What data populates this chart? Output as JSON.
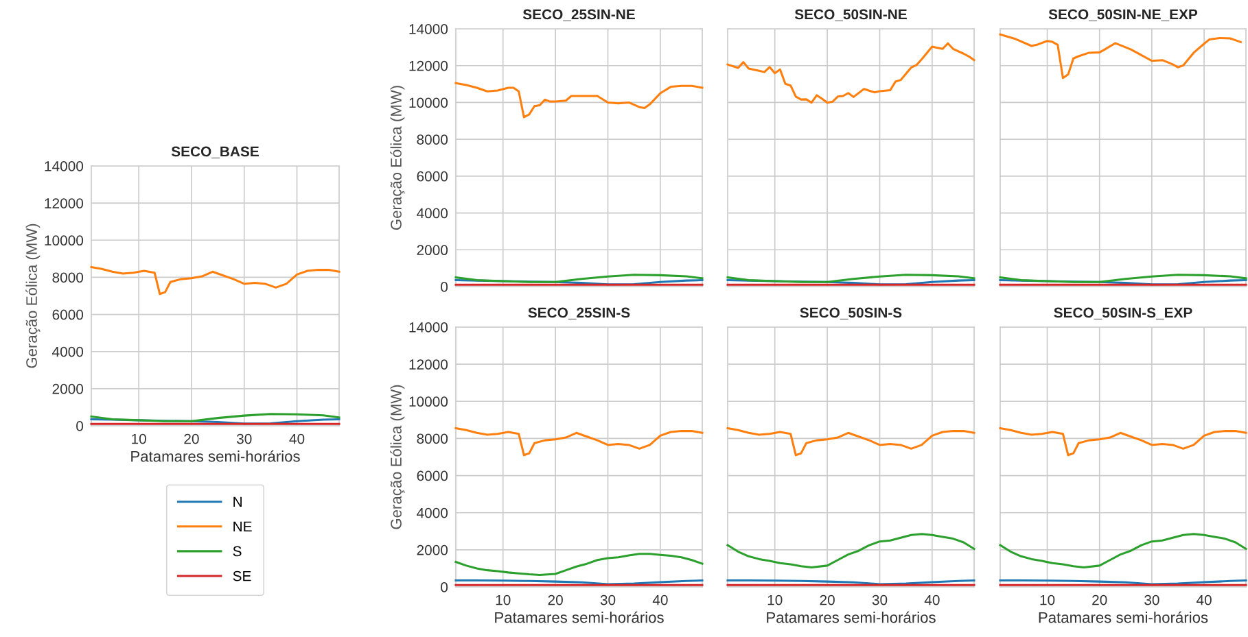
{
  "chart_data": [
    {
      "type": "line",
      "title": "SECO_BASE",
      "xlabel": "Patamares semi-horários",
      "ylabel": "Geração Eólica (MW)",
      "xlim": [
        1,
        48
      ],
      "xticks": [
        10,
        20,
        30,
        40
      ],
      "ylim": [
        0,
        14000
      ],
      "yticks": [
        0,
        2000,
        4000,
        6000,
        8000,
        10000,
        12000,
        14000
      ],
      "grid": true,
      "legend": "bottom",
      "line_style": "solid",
      "series": [
        {
          "name": "N",
          "color": "#1f77b4",
          "x": [
            1,
            5,
            10,
            15,
            20,
            25,
            30,
            35,
            40,
            45,
            48
          ],
          "values": [
            350,
            330,
            300,
            270,
            250,
            200,
            120,
            130,
            250,
            330,
            350
          ]
        },
        {
          "name": "NE",
          "color": "#ff7f0e",
          "x": [
            1,
            3,
            5,
            7,
            9,
            11,
            13,
            14,
            15,
            16,
            18,
            20,
            22,
            24,
            26,
            28,
            30,
            32,
            34,
            36,
            38,
            40,
            42,
            44,
            46,
            48
          ],
          "values": [
            8550,
            8450,
            8300,
            8200,
            8250,
            8350,
            8250,
            7100,
            7200,
            7750,
            7900,
            7950,
            8050,
            8300,
            8100,
            7900,
            7650,
            7700,
            7650,
            7450,
            7650,
            8150,
            8350,
            8400,
            8400,
            8300
          ]
        },
        {
          "name": "S",
          "color": "#2ca02c",
          "x": [
            1,
            5,
            10,
            15,
            20,
            25,
            30,
            35,
            40,
            45,
            48
          ],
          "values": [
            500,
            350,
            300,
            250,
            250,
            420,
            550,
            640,
            620,
            560,
            450
          ]
        },
        {
          "name": "SE",
          "color": "#d62728",
          "x": [
            1,
            24,
            48
          ],
          "values": [
            100,
            100,
            100
          ]
        }
      ]
    },
    {
      "type": "line",
      "title": "SECO_25SIN-NE",
      "ylabel": "Geração Eólica (MW)",
      "xlim": [
        1,
        48
      ],
      "xticks": [
        10,
        20,
        30,
        40
      ],
      "ylim": [
        0,
        14000
      ],
      "yticks": [
        0,
        2000,
        4000,
        6000,
        8000,
        10000,
        12000,
        14000
      ],
      "grid": true,
      "tick_labels": "y",
      "line_style": "solid",
      "series": [
        {
          "color": "#1f77b4",
          "x": [
            1,
            5,
            10,
            15,
            20,
            25,
            30,
            35,
            40,
            45,
            48
          ],
          "values": [
            350,
            330,
            300,
            270,
            250,
            200,
            120,
            130,
            250,
            330,
            350
          ]
        },
        {
          "color": "#ff7f0e",
          "x": [
            1,
            3,
            5,
            7,
            9,
            11,
            12,
            13,
            14,
            15,
            16,
            17,
            18,
            19,
            20,
            22,
            23,
            26,
            28,
            30,
            32,
            34,
            36,
            37,
            38,
            40,
            42,
            44,
            46,
            48
          ],
          "values": [
            11050,
            10950,
            10800,
            10600,
            10650,
            10800,
            10800,
            10600,
            9200,
            9350,
            9800,
            9850,
            10150,
            10050,
            10050,
            10100,
            10350,
            10350,
            10350,
            10000,
            9950,
            10000,
            9750,
            9700,
            9900,
            10500,
            10850,
            10900,
            10900,
            10800
          ]
        },
        {
          "color": "#2ca02c",
          "x": [
            1,
            5,
            10,
            15,
            20,
            25,
            30,
            35,
            40,
            45,
            48
          ],
          "values": [
            500,
            350,
            300,
            250,
            250,
            420,
            550,
            640,
            620,
            560,
            450
          ]
        },
        {
          "color": "#d62728",
          "x": [
            1,
            24,
            48
          ],
          "values": [
            100,
            100,
            100
          ]
        }
      ]
    },
    {
      "type": "line",
      "title": "SECO_50SIN-NE",
      "xlim": [
        1,
        48
      ],
      "xticks": [
        10,
        20,
        30,
        40
      ],
      "ylim": [
        0,
        14000
      ],
      "yticks": [
        0,
        2000,
        4000,
        6000,
        8000,
        10000,
        12000,
        14000
      ],
      "grid": true,
      "tick_labels": false,
      "line_style": "solid",
      "series": [
        {
          "color": "#1f77b4",
          "x": [
            1,
            5,
            10,
            15,
            20,
            25,
            30,
            35,
            40,
            45,
            48
          ],
          "values": [
            350,
            330,
            300,
            270,
            250,
            200,
            120,
            130,
            250,
            330,
            350
          ]
        },
        {
          "color": "#ff7f0e",
          "x": [
            1,
            3,
            4,
            5,
            7,
            8,
            9,
            10,
            11,
            12,
            13,
            14,
            15,
            16,
            17,
            18,
            19,
            20,
            21,
            22,
            23,
            24,
            25,
            27,
            29,
            30,
            32,
            33,
            34,
            36,
            37,
            38,
            40,
            41,
            42,
            43,
            44,
            46,
            47,
            48
          ],
          "values": [
            12060,
            11880,
            12190,
            11840,
            11720,
            11650,
            11920,
            11590,
            11790,
            11010,
            10920,
            10320,
            10160,
            10170,
            9990,
            10390,
            10200,
            9990,
            10040,
            10320,
            10350,
            10510,
            10300,
            10730,
            10550,
            10610,
            10670,
            11130,
            11220,
            11900,
            12030,
            12340,
            13030,
            12970,
            12910,
            13210,
            12910,
            12650,
            12500,
            12300
          ]
        },
        {
          "color": "#2ca02c",
          "x": [
            1,
            5,
            10,
            15,
            20,
            25,
            30,
            35,
            40,
            45,
            48
          ],
          "values": [
            500,
            350,
            300,
            250,
            250,
            420,
            550,
            640,
            620,
            560,
            450
          ]
        },
        {
          "color": "#d62728",
          "x": [
            1,
            24,
            48
          ],
          "values": [
            100,
            100,
            100
          ]
        }
      ]
    },
    {
      "type": "line",
      "title": "SECO_50SIN-NE_EXP",
      "xlim": [
        1,
        48
      ],
      "xticks": [
        10,
        20,
        30,
        40
      ],
      "ylim": [
        0,
        14000
      ],
      "yticks": [
        0,
        2000,
        4000,
        6000,
        8000,
        10000,
        12000,
        14000
      ],
      "grid": true,
      "tick_labels": false,
      "line_style": "solid",
      "series": [
        {
          "color": "#1f77b4",
          "x": [
            1,
            5,
            10,
            15,
            20,
            25,
            30,
            35,
            40,
            45,
            48
          ],
          "values": [
            350,
            330,
            300,
            270,
            250,
            200,
            120,
            130,
            250,
            330,
            350
          ]
        },
        {
          "color": "#ff7f0e",
          "x": [
            1,
            4,
            7,
            8,
            10,
            11,
            12,
            13,
            14,
            15,
            16,
            18,
            20,
            21,
            23,
            26,
            28,
            30,
            31,
            32,
            34,
            35,
            36,
            38,
            40,
            41,
            43,
            45,
            46,
            47
          ],
          "values": [
            13690,
            13440,
            13070,
            13130,
            13340,
            13290,
            13130,
            11330,
            11520,
            12390,
            12510,
            12700,
            12720,
            12880,
            13220,
            12880,
            12570,
            12260,
            12280,
            12300,
            12070,
            11910,
            12010,
            12700,
            13190,
            13420,
            13500,
            13480,
            13380,
            13280
          ]
        },
        {
          "color": "#2ca02c",
          "x": [
            1,
            5,
            10,
            15,
            20,
            25,
            30,
            35,
            40,
            45,
            48
          ],
          "values": [
            500,
            350,
            300,
            250,
            250,
            420,
            550,
            640,
            620,
            560,
            450
          ]
        },
        {
          "color": "#d62728",
          "x": [
            1,
            24,
            48
          ],
          "values": [
            100,
            100,
            100
          ]
        }
      ]
    },
    {
      "type": "line",
      "title": "SECO_25SIN-S",
      "xlabel": "Patamares semi-horários",
      "ylabel": "Geração Eólica (MW)",
      "xlim": [
        1,
        48
      ],
      "xticks": [
        10,
        20,
        30,
        40
      ],
      "ylim": [
        0,
        14000
      ],
      "yticks": [
        0,
        2000,
        4000,
        6000,
        8000,
        10000,
        12000,
        14000
      ],
      "grid": true,
      "line_style": "solid",
      "series": [
        {
          "color": "#1f77b4",
          "x": [
            1,
            5,
            10,
            15,
            20,
            25,
            30,
            35,
            40,
            45,
            48
          ],
          "values": [
            350,
            350,
            340,
            320,
            290,
            250,
            150,
            180,
            260,
            320,
            350
          ]
        },
        {
          "color": "#ff7f0e",
          "x": [
            1,
            3,
            5,
            7,
            9,
            11,
            13,
            14,
            15,
            16,
            18,
            20,
            22,
            24,
            26,
            28,
            30,
            32,
            34,
            36,
            38,
            40,
            42,
            44,
            46,
            48
          ],
          "values": [
            8550,
            8450,
            8300,
            8200,
            8250,
            8350,
            8250,
            7100,
            7200,
            7750,
            7900,
            7950,
            8050,
            8300,
            8100,
            7900,
            7650,
            7700,
            7650,
            7450,
            7650,
            8150,
            8350,
            8400,
            8400,
            8300
          ]
        },
        {
          "color": "#2ca02c",
          "x": [
            1,
            3,
            5,
            7,
            9,
            11,
            13,
            15,
            17,
            20,
            22,
            24,
            26,
            28,
            30,
            32,
            34,
            36,
            38,
            40,
            42,
            44,
            46,
            48
          ],
          "values": [
            1350,
            1150,
            1000,
            900,
            850,
            780,
            730,
            680,
            650,
            700,
            900,
            1100,
            1250,
            1450,
            1550,
            1600,
            1700,
            1780,
            1780,
            1730,
            1680,
            1600,
            1450,
            1250
          ]
        },
        {
          "color": "#d62728",
          "x": [
            1,
            24,
            48
          ],
          "values": [
            100,
            100,
            100
          ]
        }
      ]
    },
    {
      "type": "line",
      "title": "SECO_50SIN-S",
      "xlabel": "Patamares semi-horários",
      "xlim": [
        1,
        48
      ],
      "xticks": [
        10,
        20,
        30,
        40
      ],
      "ylim": [
        0,
        14000
      ],
      "yticks": [
        0,
        2000,
        4000,
        6000,
        8000,
        10000,
        12000,
        14000
      ],
      "grid": true,
      "tick_labels": "x",
      "line_style": "solid",
      "series": [
        {
          "color": "#1f77b4",
          "x": [
            1,
            5,
            10,
            15,
            20,
            25,
            30,
            35,
            40,
            45,
            48
          ],
          "values": [
            350,
            350,
            340,
            320,
            290,
            250,
            150,
            180,
            260,
            320,
            350
          ]
        },
        {
          "color": "#ff7f0e",
          "x": [
            1,
            3,
            5,
            7,
            9,
            11,
            13,
            14,
            15,
            16,
            18,
            20,
            22,
            24,
            26,
            28,
            30,
            32,
            34,
            36,
            38,
            40,
            42,
            44,
            46,
            48
          ],
          "values": [
            8550,
            8450,
            8300,
            8200,
            8250,
            8350,
            8250,
            7100,
            7200,
            7750,
            7900,
            7950,
            8050,
            8300,
            8100,
            7900,
            7650,
            7700,
            7650,
            7450,
            7650,
            8150,
            8350,
            8400,
            8400,
            8300
          ]
        },
        {
          "color": "#2ca02c",
          "x": [
            1,
            3,
            5,
            7,
            9,
            11,
            13,
            15,
            17,
            20,
            22,
            24,
            26,
            28,
            30,
            32,
            34,
            36,
            38,
            40,
            42,
            44,
            46,
            48
          ],
          "values": [
            2250,
            1900,
            1650,
            1500,
            1400,
            1280,
            1220,
            1120,
            1050,
            1150,
            1450,
            1750,
            1950,
            2250,
            2450,
            2500,
            2650,
            2800,
            2850,
            2800,
            2700,
            2600,
            2400,
            2050
          ]
        },
        {
          "color": "#d62728",
          "x": [
            1,
            24,
            48
          ],
          "values": [
            100,
            100,
            100
          ]
        }
      ]
    },
    {
      "type": "line",
      "title": "SECO_50SIN-S_EXP",
      "xlabel": "Patamares semi-horários",
      "xlim": [
        1,
        48
      ],
      "xticks": [
        10,
        20,
        30,
        40
      ],
      "ylim": [
        0,
        14000
      ],
      "yticks": [
        0,
        2000,
        4000,
        6000,
        8000,
        10000,
        12000,
        14000
      ],
      "grid": true,
      "tick_labels": "x",
      "line_style": "solid",
      "series": [
        {
          "color": "#1f77b4",
          "x": [
            1,
            5,
            10,
            15,
            20,
            25,
            30,
            35,
            40,
            45,
            48
          ],
          "values": [
            350,
            350,
            340,
            320,
            290,
            250,
            150,
            180,
            260,
            320,
            350
          ]
        },
        {
          "color": "#ff7f0e",
          "x": [
            1,
            3,
            5,
            7,
            9,
            11,
            13,
            14,
            15,
            16,
            18,
            20,
            22,
            24,
            26,
            28,
            30,
            32,
            34,
            36,
            38,
            40,
            42,
            44,
            46,
            48
          ],
          "values": [
            8550,
            8450,
            8300,
            8200,
            8250,
            8350,
            8250,
            7100,
            7200,
            7750,
            7900,
            7950,
            8050,
            8300,
            8100,
            7900,
            7650,
            7700,
            7650,
            7450,
            7650,
            8150,
            8350,
            8400,
            8400,
            8300
          ]
        },
        {
          "color": "#2ca02c",
          "x": [
            1,
            3,
            5,
            7,
            9,
            11,
            13,
            15,
            17,
            20,
            22,
            24,
            26,
            28,
            30,
            32,
            34,
            36,
            38,
            40,
            42,
            44,
            46,
            48
          ],
          "values": [
            2250,
            1900,
            1650,
            1500,
            1400,
            1280,
            1220,
            1120,
            1050,
            1150,
            1450,
            1750,
            1950,
            2250,
            2450,
            2500,
            2650,
            2800,
            2850,
            2800,
            2700,
            2600,
            2400,
            2050
          ]
        },
        {
          "color": "#d62728",
          "x": [
            1,
            24,
            48
          ],
          "values": [
            100,
            100,
            100
          ]
        }
      ]
    }
  ]
}
